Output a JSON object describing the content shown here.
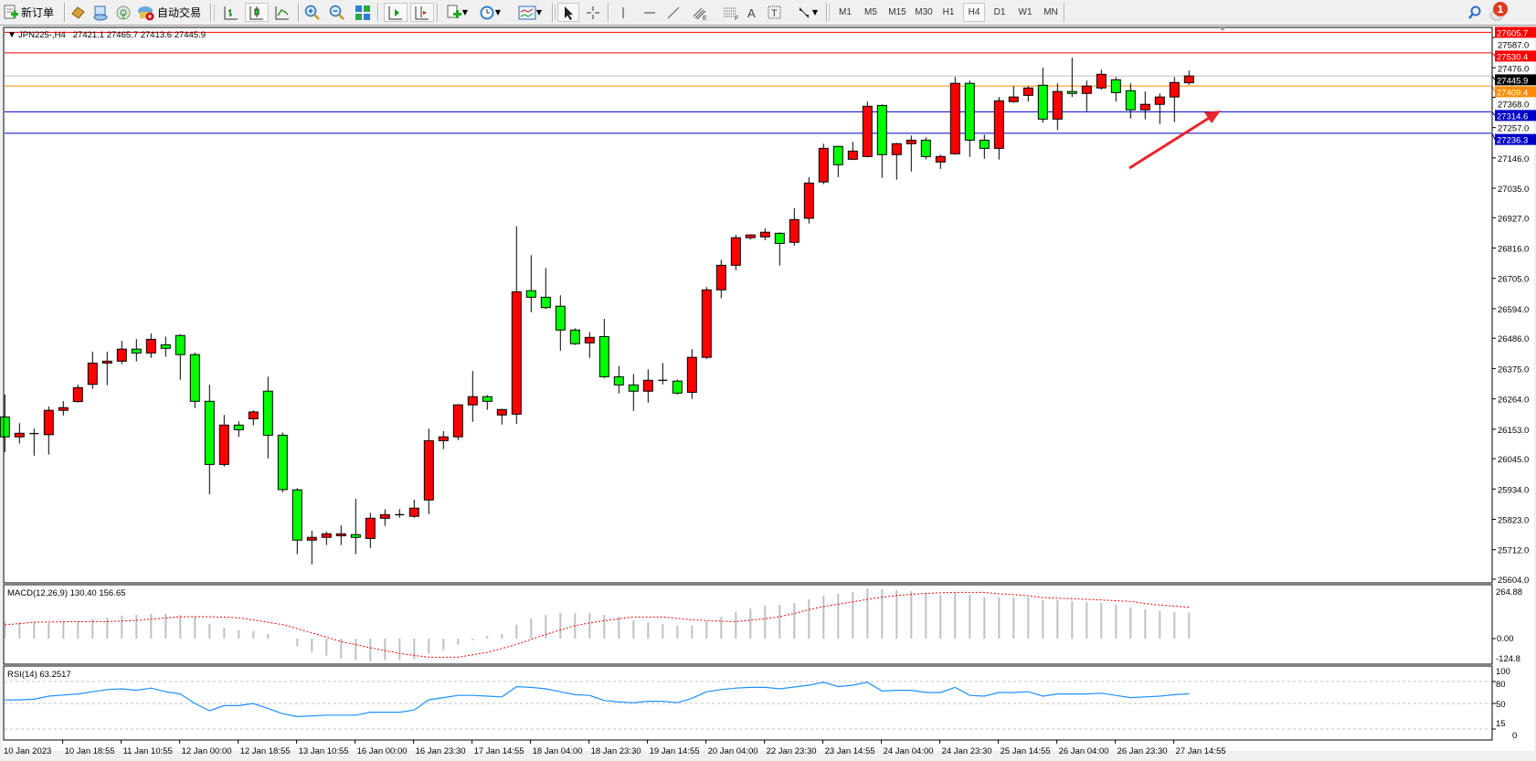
{
  "toolbar": {
    "new_order_label": "新订单",
    "auto_trading_label": "自动交易",
    "timeframes": [
      "M1",
      "M5",
      "M15",
      "M30",
      "H1",
      "H4",
      "D1",
      "W1",
      "MN"
    ],
    "active_timeframe": "H4",
    "notification_count": "1",
    "icons": [
      "new-order-icon",
      "market-watch-icon",
      "data-window-icon",
      "signals-icon",
      "auto-trading-icon",
      "bar-chart-icon",
      "candlestick-chart-icon",
      "line-chart-icon",
      "zoom-in-icon",
      "zoom-out-icon",
      "tile-windows-icon",
      "auto-scroll-icon",
      "chart-shift-icon",
      "indicators-icon",
      "periods-icon",
      "templates-icon",
      "cursor-icon",
      "crosshair-icon",
      "vertical-line-icon",
      "horizontal-line-icon",
      "trendline-icon",
      "fibonacci-channel-icon",
      "fibonacci-icon",
      "text-icon",
      "text-label-icon",
      "arrows-icon",
      "search-icon",
      "notification-icon"
    ]
  },
  "chart": {
    "symbol_header": "JPN225-,H4",
    "ohlc_header": "27421.1 27465.7 27413.6 27445.9",
    "price_levels": [
      {
        "label": "27605.7",
        "value": 27605.7,
        "color": "#ff0000",
        "text_color": "#ffffff"
      },
      {
        "label": "27530.4",
        "value": 27530.4,
        "color": "#ff0000",
        "text_color": "#ffffff"
      },
      {
        "label": "27445.9",
        "value": 27445.9,
        "color": "#c0c0c0",
        "box": "#000000",
        "text_color": "#ffffff"
      },
      {
        "label": "27409.4",
        "value": 27409.4,
        "color": "#ff8c00",
        "text_color": "#ffffff"
      },
      {
        "label": "27314.6",
        "value": 27314.6,
        "color": "#0000c8",
        "text_color": "#ffffff"
      },
      {
        "label": "27236.3",
        "value": 27236.3,
        "color": "#0000c8",
        "text_color": "#ffffff"
      }
    ],
    "up_color": "#ff0000",
    "down_color": "#00ff00",
    "arrow_color": "#e8232a"
  },
  "macd": {
    "label": "MACD(12,26,9) 130.40 156.65",
    "axis_labels": [
      "264.88",
      "0.00",
      "-124.8"
    ]
  },
  "rsi": {
    "label": "RSI(14) 63.2517",
    "axis_labels": [
      "100",
      "80",
      "50",
      "15",
      "0"
    ]
  },
  "chart_data": {
    "type": "candlestick",
    "price_ticks": [
      "27587.0",
      "27476.0",
      "27368.0",
      "27257.0",
      "27146.0",
      "27035.0",
      "26927.0",
      "26816.0",
      "26705.0",
      "26594.0",
      "26486.0",
      "26375.0",
      "26264.0",
      "26153.0",
      "26045.0",
      "25934.0",
      "25823.0",
      "25712.0",
      "25604.0"
    ],
    "time_labels": [
      "10 Jan 2023",
      "10 Jan 18:55",
      "11 Jan 10:55",
      "12 Jan 00:00",
      "12 Jan 18:55",
      "13 Jan 10:55",
      "16 Jan 00:00",
      "16 Jan 23:30",
      "17 Jan 14:55",
      "18 Jan 04:00",
      "18 Jan 23:30",
      "19 Jan 14:55",
      "20 Jan 04:00",
      "22 Jan 23:30",
      "23 Jan 14:55",
      "24 Jan 04:00",
      "24 Jan 23:30",
      "25 Jan 14:55",
      "26 Jan 04:00",
      "26 Jan 23:30",
      "27 Jan 14:55"
    ],
    "ohlc": [
      [
        26198,
        26280,
        26069,
        26125
      ],
      [
        26125,
        26175,
        26100,
        26138
      ],
      [
        26137,
        26155,
        26056,
        26137
      ],
      [
        26133,
        26236,
        26060,
        26222
      ],
      [
        26222,
        26256,
        26203,
        26232
      ],
      [
        26254,
        26316,
        26250,
        26305
      ],
      [
        26317,
        26437,
        26300,
        26395
      ],
      [
        26395,
        26437,
        26314,
        26402
      ],
      [
        26402,
        26476,
        26391,
        26446
      ],
      [
        26446,
        26483,
        26401,
        26432
      ],
      [
        26432,
        26503,
        26414,
        26482
      ],
      [
        26462,
        26492,
        26418,
        26449
      ],
      [
        26496,
        26500,
        26334,
        26426
      ],
      [
        26426,
        26433,
        26230,
        26255
      ],
      [
        26255,
        26316,
        25915,
        26024
      ],
      [
        26024,
        26205,
        26016,
        26168
      ],
      [
        26168,
        26182,
        26125,
        26151
      ],
      [
        26191,
        26222,
        26167,
        26216
      ],
      [
        26292,
        26345,
        26046,
        26131
      ],
      [
        26131,
        26141,
        25922,
        25932
      ],
      [
        25931,
        25937,
        25695,
        25747
      ],
      [
        25747,
        25781,
        25658,
        25757
      ],
      [
        25757,
        25778,
        25729,
        25770
      ],
      [
        25763,
        25801,
        25729,
        25770
      ],
      [
        25767,
        25898,
        25695,
        25757
      ],
      [
        25753,
        25847,
        25718,
        25827
      ],
      [
        25827,
        25860,
        25799,
        25840
      ],
      [
        25840,
        25860,
        25829,
        25840
      ],
      [
        25834,
        25895,
        25829,
        25864
      ],
      [
        25894,
        26155,
        25842,
        26111
      ],
      [
        26111,
        26146,
        26080,
        26125
      ],
      [
        26125,
        26245,
        26113,
        26242
      ],
      [
        26242,
        26366,
        26180,
        26272
      ],
      [
        26272,
        26278,
        26224,
        26255
      ],
      [
        26205,
        26228,
        26170,
        26225
      ],
      [
        26208,
        26896,
        26173,
        26656
      ],
      [
        26660,
        26790,
        26581,
        26636
      ],
      [
        26636,
        26743,
        26593,
        26598
      ],
      [
        26603,
        26643,
        26440,
        26516
      ],
      [
        26516,
        26522,
        26461,
        26466
      ],
      [
        26469,
        26509,
        26414,
        26489
      ],
      [
        26492,
        26557,
        26340,
        26345
      ],
      [
        26345,
        26385,
        26284,
        26315
      ],
      [
        26315,
        26355,
        26220,
        26292
      ],
      [
        26292,
        26372,
        26250,
        26332
      ],
      [
        26332,
        26395,
        26317,
        26332
      ],
      [
        26329,
        26335,
        26280,
        26285
      ],
      [
        26288,
        26446,
        26264,
        26416
      ],
      [
        26416,
        26673,
        26410,
        26663
      ],
      [
        26663,
        26773,
        26632,
        26753
      ],
      [
        26753,
        26864,
        26735,
        26854
      ],
      [
        26854,
        26866,
        26847,
        26864
      ],
      [
        26857,
        26888,
        26845,
        26874
      ],
      [
        26870,
        26874,
        26752,
        26833
      ],
      [
        26837,
        26962,
        26825,
        26920
      ],
      [
        26925,
        27075,
        26906,
        27054
      ],
      [
        27058,
        27198,
        27050,
        27181
      ],
      [
        27188,
        27190,
        27076,
        27121
      ],
      [
        27141,
        27205,
        27138,
        27171
      ],
      [
        27151,
        27352,
        27148,
        27335
      ],
      [
        27338,
        27342,
        27073,
        27158
      ],
      [
        27158,
        27201,
        27066,
        27198
      ],
      [
        27198,
        27228,
        27096,
        27211
      ],
      [
        27211,
        27221,
        27141,
        27151
      ],
      [
        27131,
        27158,
        27106,
        27151
      ],
      [
        27161,
        27442,
        27158,
        27419
      ],
      [
        27419,
        27429,
        27150,
        27211
      ],
      [
        27211,
        27231,
        27143,
        27181
      ],
      [
        27181,
        27369,
        27140,
        27355
      ],
      [
        27352,
        27409,
        27348,
        27369
      ],
      [
        27375,
        27409,
        27352,
        27402
      ],
      [
        27412,
        27476,
        27275,
        27288
      ],
      [
        27288,
        27419,
        27248,
        27389
      ],
      [
        27389,
        27513,
        27369,
        27382
      ],
      [
        27382,
        27429,
        27317,
        27409
      ],
      [
        27402,
        27469,
        27395,
        27452
      ],
      [
        27432,
        27442,
        27352,
        27385
      ],
      [
        27392,
        27419,
        27290,
        27322
      ],
      [
        27322,
        27389,
        27287,
        27342
      ],
      [
        27342,
        27382,
        27270,
        27369
      ],
      [
        27369,
        27442,
        27277,
        27422
      ],
      [
        27421.1,
        27465.7,
        27413.6,
        27445.9
      ]
    ],
    "macd_histogram": [
      87,
      81,
      81,
      78,
      84,
      87,
      96,
      105,
      115,
      119,
      124,
      124,
      117,
      108,
      73,
      55,
      41,
      37,
      23,
      0,
      -39,
      -67,
      -85,
      -99,
      -108,
      -113,
      -108,
      -108,
      -104,
      -76,
      -58,
      -30,
      -8,
      13,
      23,
      69,
      100,
      119,
      128,
      128,
      128,
      119,
      109,
      91,
      82,
      73,
      64,
      64,
      87,
      109,
      132,
      150,
      165,
      169,
      178,
      196,
      215,
      224,
      233,
      251,
      247,
      242,
      237,
      228,
      219,
      228,
      219,
      206,
      206,
      206,
      206,
      192,
      192,
      187,
      183,
      178,
      169,
      155,
      146,
      137,
      132,
      130.4
    ],
    "macd_signal": [
      69,
      75,
      82,
      83,
      84,
      85,
      85,
      85,
      88,
      91,
      97,
      103,
      109,
      109,
      109,
      107,
      104,
      93,
      81,
      70,
      50,
      29,
      7,
      -15,
      -30,
      -46,
      -60,
      -74,
      -84,
      -93,
      -93,
      -93,
      -81,
      -69,
      -49,
      -29,
      -4,
      21,
      43,
      65,
      78,
      90,
      99,
      108,
      108,
      108,
      101,
      94,
      90,
      87,
      85,
      92,
      99,
      110,
      125,
      145,
      160,
      172,
      184,
      196,
      207,
      215,
      221,
      226,
      229,
      231,
      231,
      231,
      224,
      220,
      214,
      205,
      202,
      199,
      196,
      193,
      189,
      186,
      175,
      168,
      162,
      156.65
    ],
    "macd_range": [
      -124.8,
      264.88
    ],
    "rsi": [
      54.6,
      55,
      55.8,
      60,
      61.5,
      63,
      66,
      69,
      70,
      68,
      71,
      66,
      63,
      50,
      40,
      47,
      47,
      50,
      43,
      36,
      32,
      33,
      34,
      34,
      34,
      38,
      38,
      38,
      41,
      55,
      58,
      61,
      61,
      60,
      59,
      73,
      72,
      70,
      66,
      62,
      61,
      54,
      52,
      51,
      53,
      53,
      51,
      57,
      66,
      69,
      71,
      72,
      72,
      70,
      72.5,
      75,
      79,
      73,
      75,
      79,
      67,
      68,
      68,
      65,
      65,
      72,
      61,
      60,
      65,
      65,
      66,
      60,
      63,
      63,
      63,
      64,
      61,
      58,
      59,
      60,
      62,
      63.25
    ],
    "rsi_levels": [
      80,
      50,
      15
    ]
  }
}
